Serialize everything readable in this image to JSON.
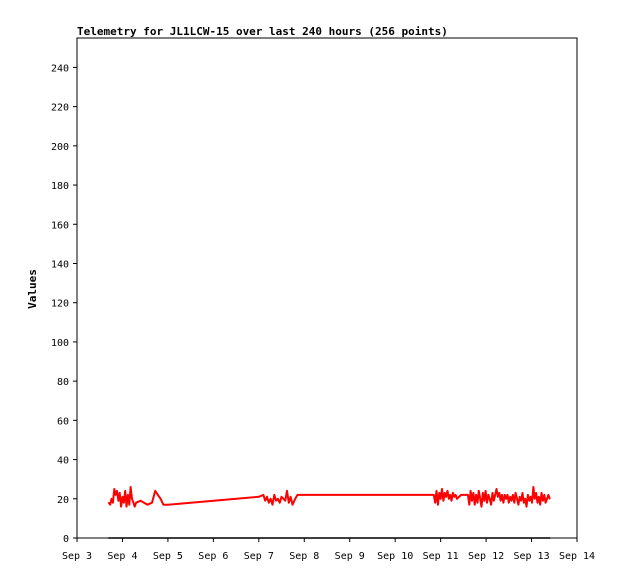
{
  "chart_data": {
    "type": "line",
    "title": "Telemetry for JL1LCW-15 over last 240 hours (256 points)",
    "xlabel": "",
    "ylabel": "Values",
    "x_ticks": [
      "Sep 3",
      "Sep 4",
      "Sep 5",
      "Sep 6",
      "Sep 7",
      "Sep 8",
      "Sep 9",
      "Sep 10",
      "Sep 11",
      "Sep 12",
      "Sep 13",
      "Sep 14"
    ],
    "xlim_days": [
      3,
      14
    ],
    "ylim": [
      0,
      255
    ],
    "y_ticks": [
      0,
      20,
      40,
      60,
      80,
      100,
      120,
      140,
      160,
      180,
      200,
      220,
      240
    ],
    "colors": {
      "series": "#ff0000",
      "baseline": "#000000"
    },
    "series": [
      {
        "name": "",
        "color": "#ff0000",
        "points": [
          [
            3.7,
            18
          ],
          [
            3.73,
            17
          ],
          [
            3.76,
            20
          ],
          [
            3.79,
            18
          ],
          [
            3.82,
            25
          ],
          [
            3.85,
            22
          ],
          [
            3.88,
            24
          ],
          [
            3.91,
            19
          ],
          [
            3.94,
            23
          ],
          [
            3.97,
            16
          ],
          [
            4.0,
            21
          ],
          [
            4.03,
            18
          ],
          [
            4.06,
            24
          ],
          [
            4.09,
            16
          ],
          [
            4.12,
            22
          ],
          [
            4.15,
            17
          ],
          [
            4.18,
            26
          ],
          [
            4.21,
            20
          ],
          [
            4.24,
            18
          ],
          [
            4.27,
            16
          ],
          [
            4.3,
            18
          ],
          [
            4.4,
            19
          ],
          [
            4.55,
            17
          ],
          [
            4.65,
            18
          ],
          [
            4.72,
            24
          ],
          [
            4.78,
            22
          ],
          [
            4.84,
            20
          ],
          [
            4.9,
            17
          ],
          [
            5.0,
            17
          ],
          [
            7.0,
            21
          ],
          [
            7.1,
            22
          ],
          [
            7.14,
            19
          ],
          [
            7.18,
            21
          ],
          [
            7.22,
            18
          ],
          [
            7.26,
            20
          ],
          [
            7.3,
            17
          ],
          [
            7.34,
            22
          ],
          [
            7.38,
            19
          ],
          [
            7.42,
            20
          ],
          [
            7.46,
            18
          ],
          [
            7.5,
            21
          ],
          [
            7.54,
            20
          ],
          [
            7.58,
            19
          ],
          [
            7.62,
            24
          ],
          [
            7.66,
            18
          ],
          [
            7.7,
            21
          ],
          [
            7.74,
            17
          ],
          [
            7.8,
            20
          ],
          [
            7.85,
            22
          ],
          [
            10.85,
            22
          ],
          [
            10.88,
            18
          ],
          [
            10.91,
            24
          ],
          [
            10.94,
            17
          ],
          [
            10.97,
            23
          ],
          [
            11.0,
            20
          ],
          [
            11.03,
            25
          ],
          [
            11.06,
            19
          ],
          [
            11.09,
            23
          ],
          [
            11.12,
            21
          ],
          [
            11.15,
            24
          ],
          [
            11.18,
            20
          ],
          [
            11.21,
            22
          ],
          [
            11.24,
            19
          ],
          [
            11.27,
            23
          ],
          [
            11.3,
            21
          ],
          [
            11.33,
            22
          ],
          [
            11.36,
            20
          ],
          [
            11.45,
            22
          ],
          [
            11.55,
            22
          ],
          [
            11.6,
            22
          ],
          [
            11.63,
            17
          ],
          [
            11.66,
            24
          ],
          [
            11.69,
            19
          ],
          [
            11.72,
            23
          ],
          [
            11.75,
            17
          ],
          [
            11.78,
            22
          ],
          [
            11.81,
            18
          ],
          [
            11.84,
            24
          ],
          [
            11.87,
            20
          ],
          [
            11.9,
            16
          ],
          [
            11.93,
            23
          ],
          [
            11.96,
            19
          ],
          [
            11.99,
            24
          ],
          [
            12.02,
            18
          ],
          [
            12.05,
            22
          ],
          [
            12.08,
            20
          ],
          [
            12.11,
            17
          ],
          [
            12.14,
            23
          ],
          [
            12.17,
            19
          ],
          [
            12.2,
            22
          ],
          [
            12.23,
            25
          ],
          [
            12.26,
            21
          ],
          [
            12.29,
            23
          ],
          [
            12.32,
            19
          ],
          [
            12.35,
            22
          ],
          [
            12.38,
            18
          ],
          [
            12.41,
            22
          ],
          [
            12.44,
            20
          ],
          [
            12.47,
            22
          ],
          [
            12.5,
            18
          ],
          [
            12.53,
            21
          ],
          [
            12.56,
            19
          ],
          [
            12.59,
            22
          ],
          [
            12.62,
            18
          ],
          [
            12.65,
            23
          ],
          [
            12.68,
            20
          ],
          [
            12.71,
            17
          ],
          [
            12.74,
            21
          ],
          [
            12.77,
            19
          ],
          [
            12.8,
            23
          ],
          [
            12.83,
            18
          ],
          [
            12.86,
            20
          ],
          [
            12.89,
            16
          ],
          [
            12.92,
            22
          ],
          [
            12.95,
            19
          ],
          [
            12.98,
            21
          ],
          [
            13.01,
            18
          ],
          [
            13.04,
            26
          ],
          [
            13.07,
            20
          ],
          [
            13.1,
            23
          ],
          [
            13.13,
            18
          ],
          [
            13.16,
            21
          ],
          [
            13.19,
            17
          ],
          [
            13.22,
            23
          ],
          [
            13.25,
            19
          ],
          [
            13.28,
            22
          ],
          [
            13.31,
            18
          ],
          [
            13.34,
            20
          ],
          [
            13.37,
            22
          ],
          [
            13.4,
            20
          ]
        ]
      },
      {
        "name": "",
        "color": "#000000",
        "points": [
          [
            3.7,
            0
          ],
          [
            13.4,
            0
          ]
        ]
      }
    ],
    "grid": false,
    "legend": "none"
  }
}
